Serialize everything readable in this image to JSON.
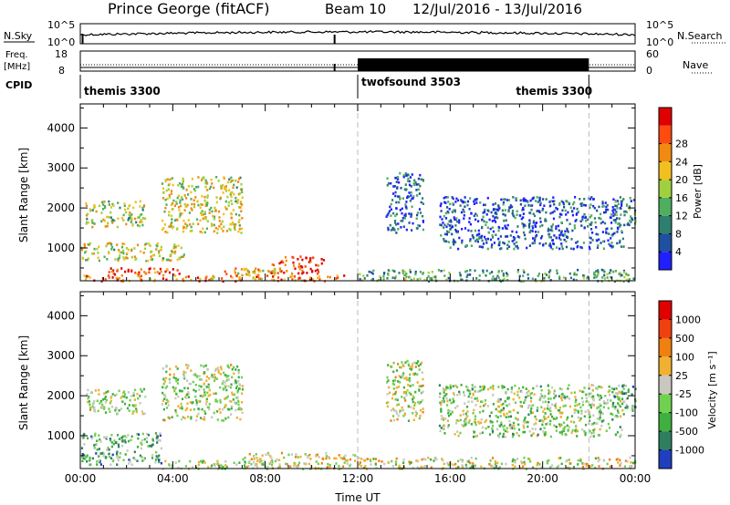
{
  "header": {
    "station": "Prince George (fitACF)",
    "beam": "Beam 10",
    "date_range": "12/Jul/2016 - 13/Jul/2016"
  },
  "top_strips": {
    "nsky_label": "N.Sky",
    "nsky_ticks": [
      "10^5",
      "10^0"
    ],
    "nsearch_label": "N.Search",
    "nsearch_ticks": [
      "10^5",
      "10^0"
    ],
    "freq_label_1": "Freq.",
    "freq_label_2": "[MHz]",
    "freq_ticks": [
      "18",
      "8"
    ],
    "nave_label": "Nave",
    "nave_ticks": [
      "60",
      "0"
    ],
    "cpid_label": "CPID",
    "cpid_segments": [
      {
        "name": "themis 3300",
        "start_hour": 0,
        "end_hour": 12
      },
      {
        "name": "twofsound 3503",
        "start_hour": 12,
        "end_hour": 22
      },
      {
        "name": "themis 3300",
        "start_hour": 22,
        "end_hour": 24
      }
    ]
  },
  "chart_data": [
    {
      "type": "heatmap",
      "name": "power",
      "xlabel": "",
      "ylabel": "Slant Range [km]",
      "x_ticks": [
        "00:00",
        "04:00",
        "08:00",
        "12:00",
        "16:00",
        "20:00",
        "00:00"
      ],
      "xlim_hours": [
        0,
        24
      ],
      "y_ticks": [
        1000,
        2000,
        3000,
        4000
      ],
      "ylim": [
        180,
        4600
      ],
      "colorbar_label": "Power [dB]",
      "colorbar_ticks": [
        4,
        8,
        12,
        16,
        20,
        24,
        28
      ],
      "colorbar_range": [
        0,
        30
      ],
      "colors": [
        "#1f1fff",
        "#1f4f9f",
        "#2f7f6f",
        "#4faf5f",
        "#a0d040",
        "#f0c020",
        "#f08a10",
        "#ff4a10",
        "#e00000"
      ],
      "regions": [
        {
          "t": [
            0,
            11.5
          ],
          "r": [
            190,
            340
          ],
          "level": 0.75
        },
        {
          "t": [
            1.2,
            4.5
          ],
          "r": [
            340,
            520
          ],
          "level": 0.85
        },
        {
          "t": [
            8.2,
            10.5
          ],
          "r": [
            380,
            820
          ],
          "level": 0.9
        },
        {
          "t": [
            6.2,
            8.5
          ],
          "r": [
            340,
            520
          ],
          "level": 0.6
        },
        {
          "t": [
            0,
            4.5
          ],
          "r": [
            700,
            1150
          ],
          "level": 0.55
        },
        {
          "t": [
            0.2,
            2.8
          ],
          "r": [
            1550,
            2200
          ],
          "level": 0.5
        },
        {
          "t": [
            3.5,
            7.0
          ],
          "r": [
            1400,
            2800
          ],
          "level": 0.55
        },
        {
          "t": [
            12,
            24
          ],
          "r": [
            190,
            480
          ],
          "level": 0.35
        },
        {
          "t": [
            13.2,
            14.8
          ],
          "r": [
            1400,
            2900
          ],
          "level": 0.2
        },
        {
          "t": [
            15.5,
            23.5
          ],
          "r": [
            1000,
            2300
          ],
          "level": 0.18
        },
        {
          "t": [
            23.0,
            24
          ],
          "r": [
            1600,
            2300
          ],
          "level": 0.3
        }
      ]
    },
    {
      "type": "heatmap",
      "name": "velocity",
      "xlabel": "Time UT",
      "ylabel": "Slant Range [km]",
      "x_ticks": [
        "00:00",
        "04:00",
        "08:00",
        "12:00",
        "16:00",
        "20:00",
        "00:00"
      ],
      "xlim_hours": [
        0,
        24
      ],
      "y_ticks": [
        1000,
        2000,
        3000,
        4000
      ],
      "ylim": [
        180,
        4600
      ],
      "colorbar_label": "Velocity [m s⁻¹]",
      "colorbar_ticks": [
        "1000",
        "500",
        "100",
        "25",
        "-25",
        "-100",
        "-500",
        "-1000"
      ],
      "colors": [
        "#1f3fbf",
        "#2f7f5f",
        "#3faf3f",
        "#70d050",
        "#c8c8c0",
        "#f0b030",
        "#f08010",
        "#f04010",
        "#e00000"
      ],
      "regions": [
        {
          "t": [
            0,
            3.5
          ],
          "r": [
            300,
            1100
          ],
          "level": 0.3
        },
        {
          "t": [
            3.5,
            8.5
          ],
          "r": [
            190,
            400
          ],
          "level": 0.45
        },
        {
          "t": [
            7.0,
            12
          ],
          "r": [
            190,
            600
          ],
          "level": 0.55
        },
        {
          "t": [
            0.2,
            2.8
          ],
          "r": [
            1550,
            2200
          ],
          "level": 0.45
        },
        {
          "t": [
            3.5,
            7.0
          ],
          "r": [
            1400,
            2800
          ],
          "level": 0.45
        },
        {
          "t": [
            12,
            24
          ],
          "r": [
            190,
            480
          ],
          "level": 0.5
        },
        {
          "t": [
            13.2,
            14.8
          ],
          "r": [
            1400,
            2900
          ],
          "level": 0.48
        },
        {
          "t": [
            15.5,
            23.5
          ],
          "r": [
            1000,
            2300
          ],
          "level": 0.42
        },
        {
          "t": [
            23.0,
            24
          ],
          "r": [
            1600,
            2300
          ],
          "level": 0.3
        }
      ]
    }
  ]
}
